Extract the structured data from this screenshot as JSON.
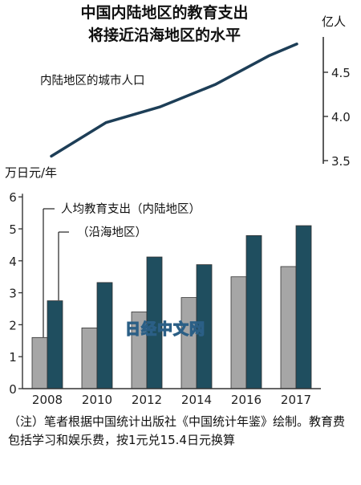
{
  "chart_data": [
    {
      "type": "line",
      "title": "中国内陆地区的教育支出\n将接近沿海地区的水平",
      "ylabel": "亿人",
      "series": [
        {
          "name": "内陆地区的城市人口",
          "x": [
            2008,
            2010,
            2012,
            2014,
            2016,
            2017
          ],
          "values": [
            3.55,
            3.93,
            4.11,
            4.36,
            4.69,
            4.82
          ]
        }
      ],
      "yticks": [
        "3.5",
        "4.0",
        "4.5"
      ],
      "ylim": [
        3.5,
        4.9
      ],
      "axis_side": "right"
    },
    {
      "type": "bar",
      "ylabel": "万日元/年",
      "categories": [
        "2008",
        "2010",
        "2012",
        "2014",
        "2016",
        "2017"
      ],
      "series": [
        {
          "name": "人均教育支出（内陆地区）",
          "color": "#a6a6a6",
          "values": [
            1.6,
            1.9,
            2.4,
            2.85,
            3.5,
            3.82
          ]
        },
        {
          "name": "（沿海地区）",
          "color": "#1f4e5f",
          "values": [
            2.75,
            3.32,
            4.12,
            3.88,
            4.79,
            5.1
          ]
        }
      ],
      "yticks": [
        "0",
        "1",
        "2",
        "3",
        "4",
        "5",
        "6"
      ],
      "ylim": [
        0,
        6.1
      ],
      "grid": false
    }
  ],
  "note": "（注）笔者根据中国统计出版社《中国统计年鉴》绘制。教育费包括学习和娱乐费，按1元兑15.4日元换算",
  "watermark": "日经中文网"
}
